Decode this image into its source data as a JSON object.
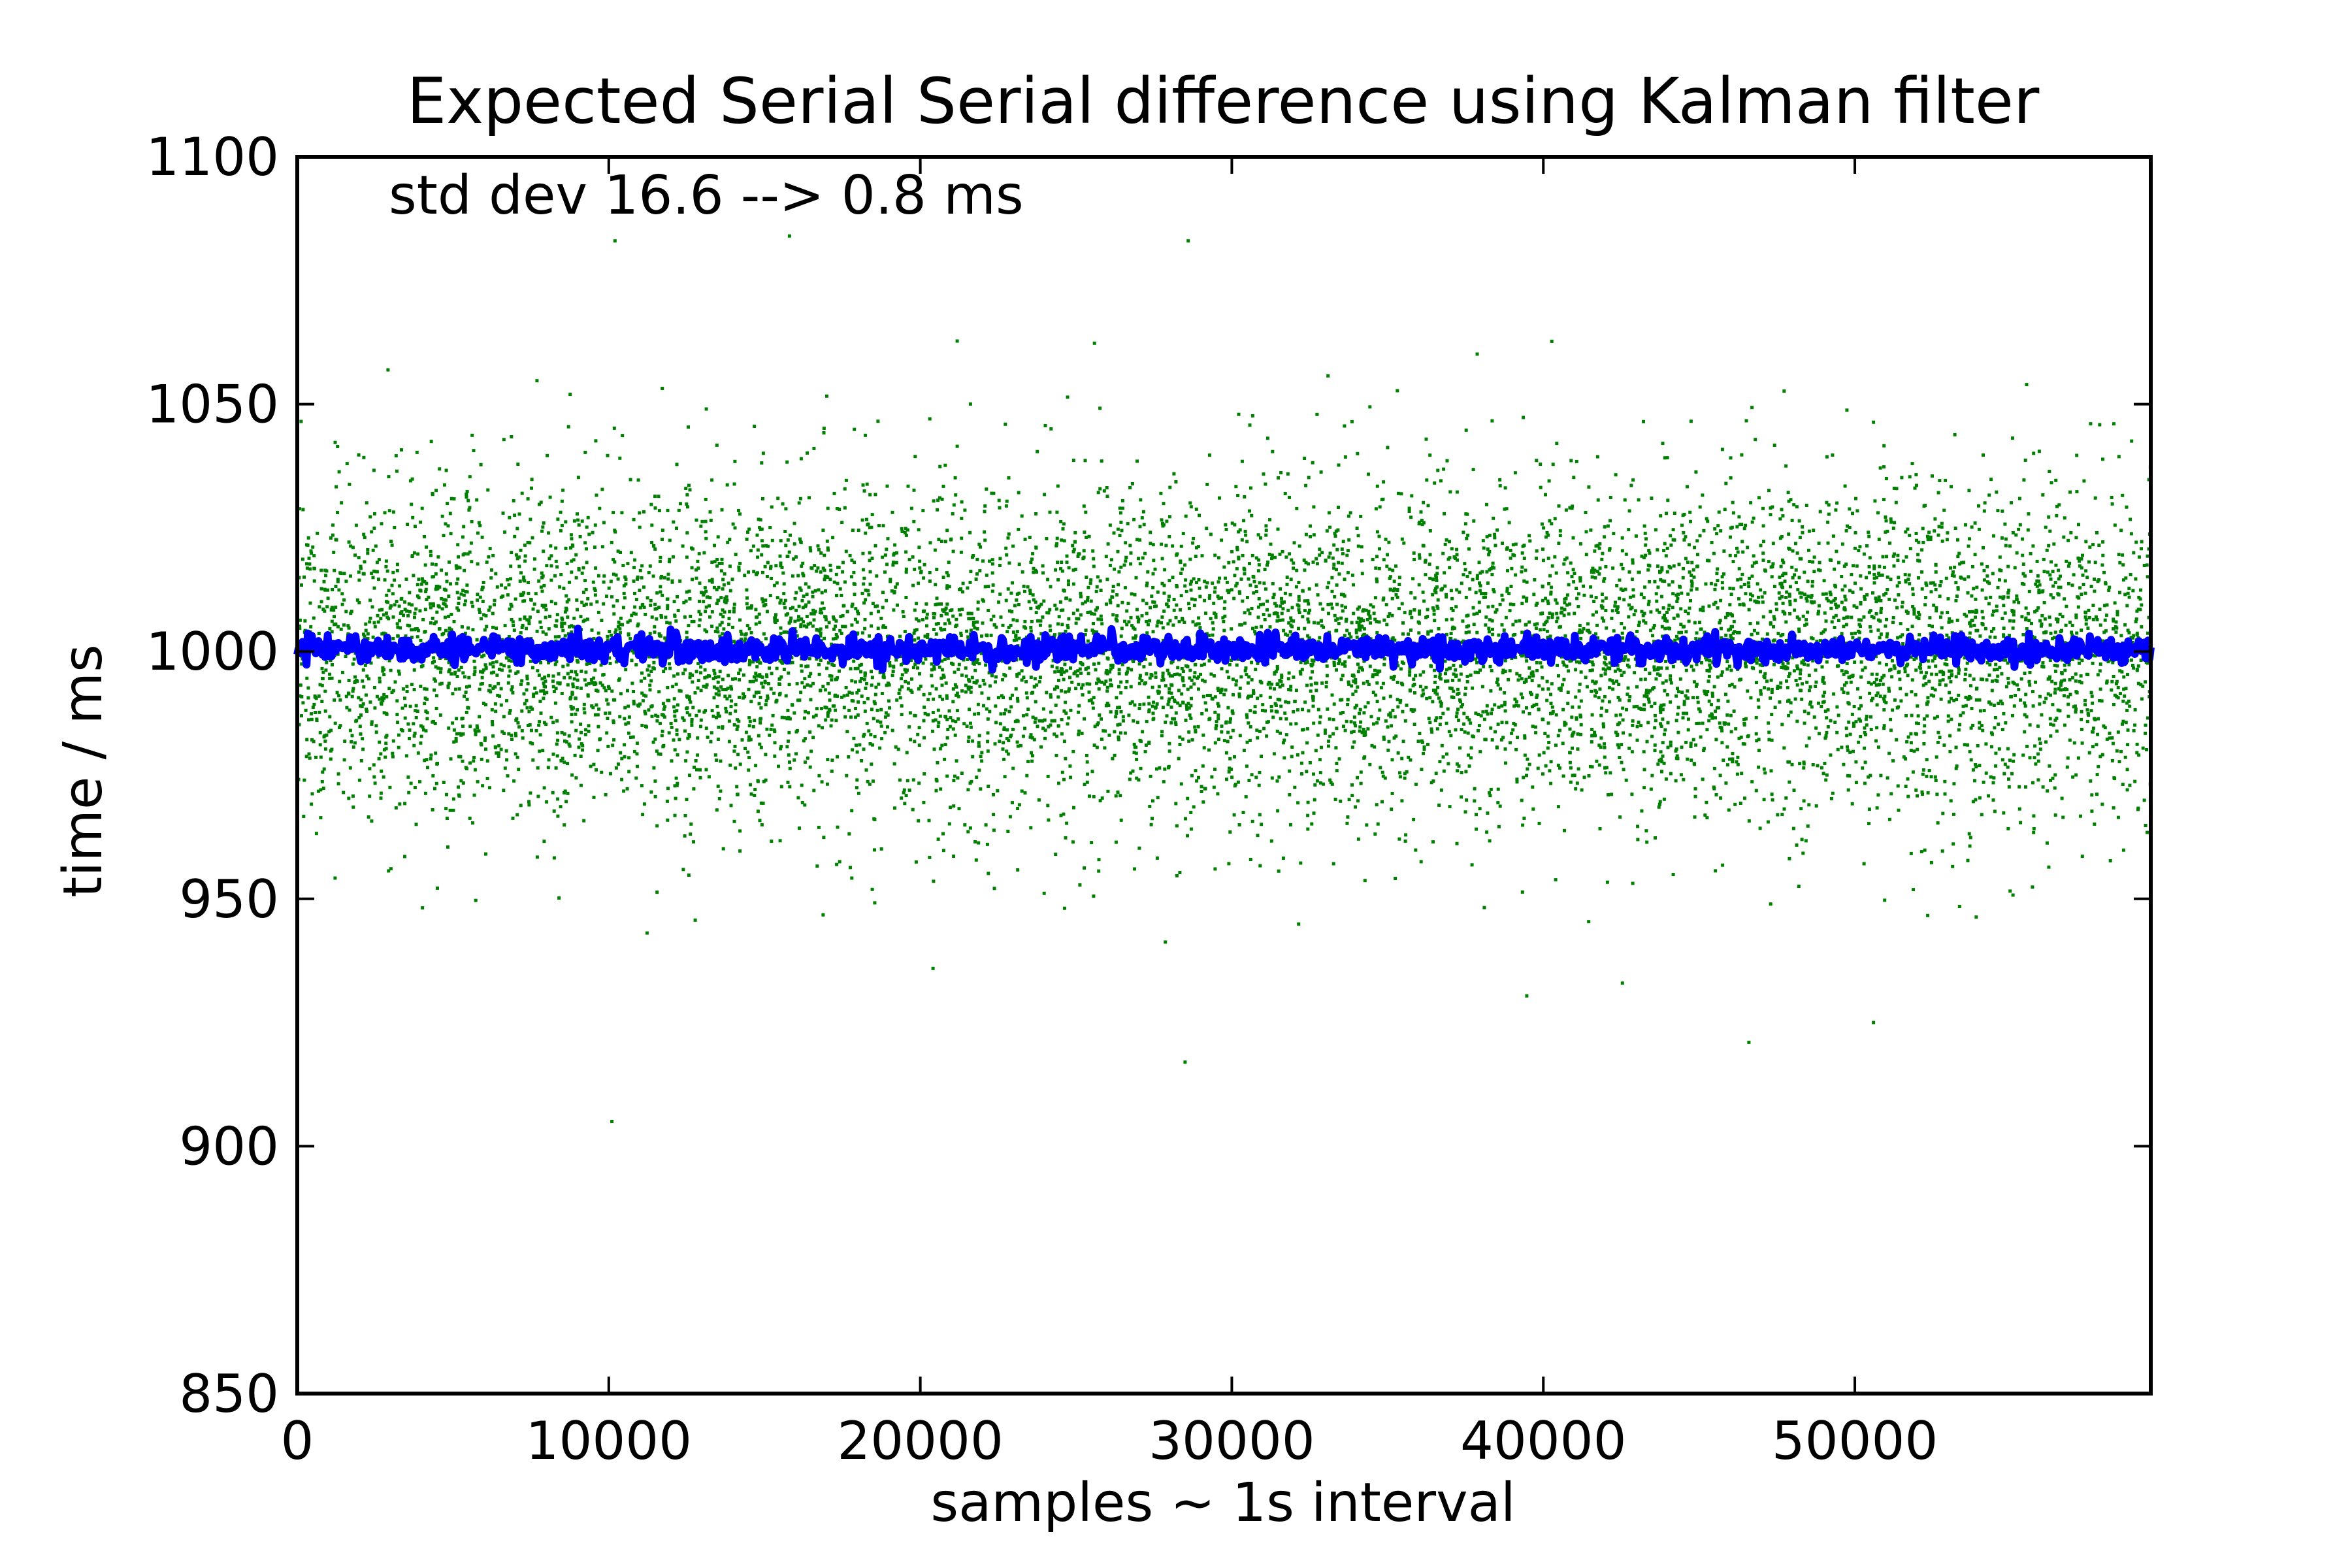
{
  "chart_data": {
    "type": "scatter",
    "title": "Expected Serial Serial difference using Kalman filter",
    "xlabel": "samples ~ 1s interval",
    "ylabel": "time / ms",
    "annotation": "std dev 16.6 --> 0.8 ms",
    "xlim": [
      0,
      59500
    ],
    "ylim": [
      850,
      1100
    ],
    "x_ticks": [
      0,
      10000,
      20000,
      30000,
      40000,
      50000
    ],
    "x_tick_labels": [
      "0",
      "10000",
      "20000",
      "30000",
      "40000",
      "50000"
    ],
    "y_ticks": [
      850,
      900,
      950,
      1000,
      1050,
      1100
    ],
    "y_tick_labels": [
      "850",
      "900",
      "950",
      "1000",
      "1050",
      "1100"
    ],
    "grid": false,
    "legend": "none",
    "series": [
      {
        "color": "#008000",
        "description_values": {
          "n_samples": 59500,
          "mean": 1000,
          "std_dev": 16.6,
          "min_approx": 905,
          "max_approx": 1083
        },
        "notable_points": [
          {
            "x": 10100,
            "y": 905
          },
          {
            "x": 28500,
            "y": 917
          },
          {
            "x": 28600,
            "y": 1083
          },
          {
            "x": 10200,
            "y": 1083
          },
          {
            "x": 46600,
            "y": 921
          },
          {
            "x": 50600,
            "y": 925
          },
          {
            "x": 15800,
            "y": 1084
          }
        ]
      },
      {
        "color": "#0000ff",
        "description_values": {
          "n_samples": 59500,
          "mean": 1000.5,
          "std_dev": 0.8
        }
      }
    ]
  },
  "colors": {
    "raw_series": "#008000",
    "kalman_series": "#0000ff",
    "axes": "#000000",
    "background": "#ffffff"
  }
}
